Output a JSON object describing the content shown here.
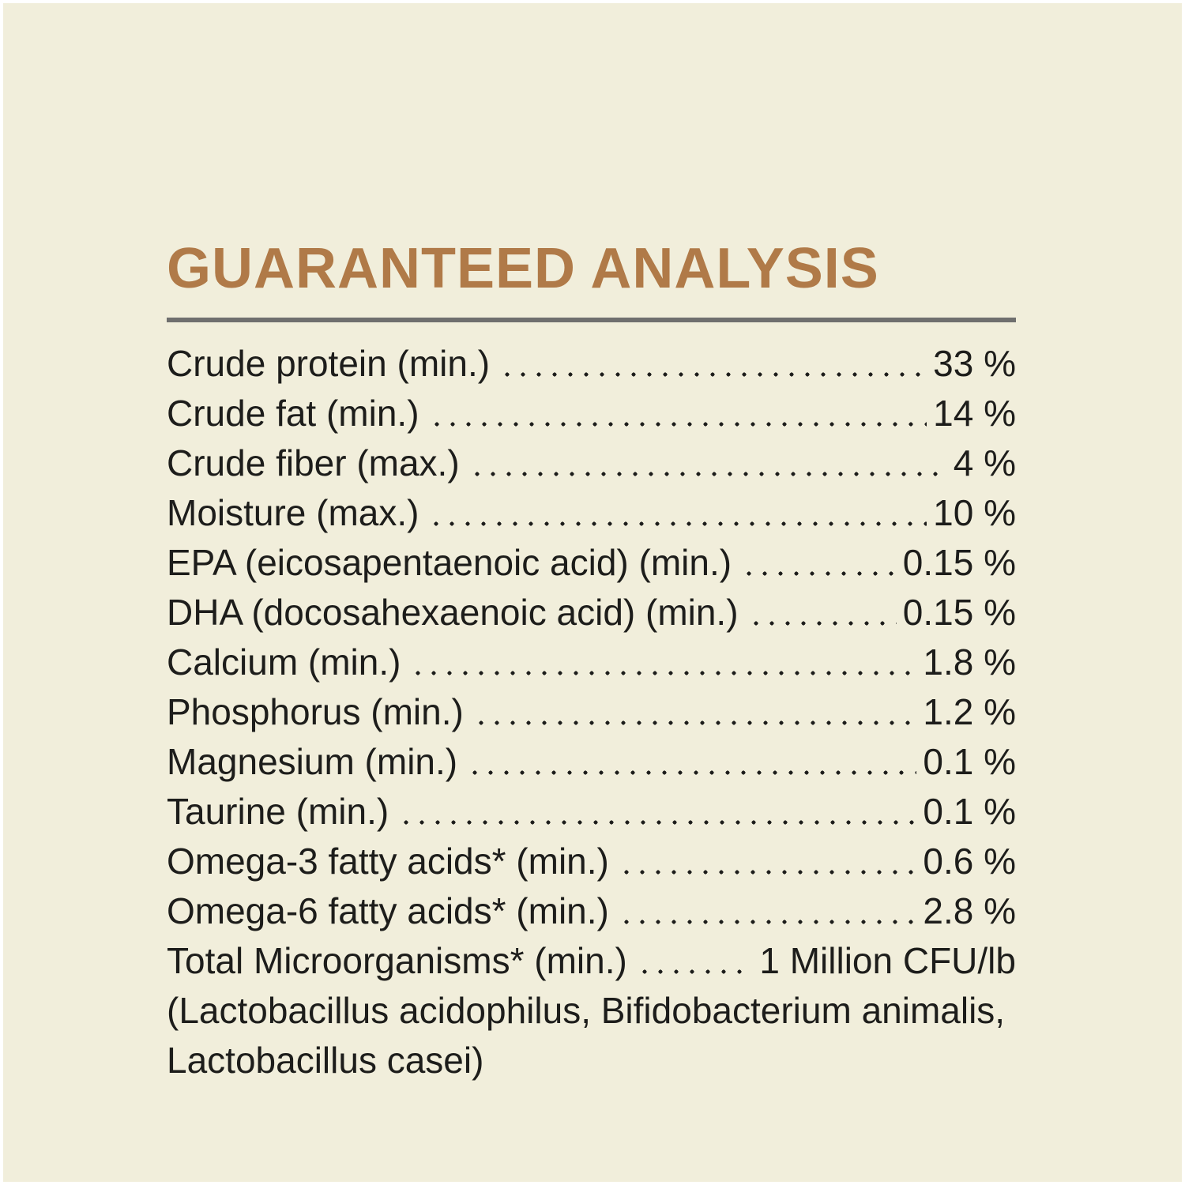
{
  "page": {
    "background_color": "#f1eedb",
    "frame_color": "#ffffff"
  },
  "heading": {
    "title": "GUARANTEED ANALYSIS",
    "color": "#b07a48",
    "rule_color": "#6f6f6e"
  },
  "analysis": {
    "text_color": "#1d1d1b",
    "rows": [
      {
        "label": "Crude protein (min.)",
        "value": "33 %"
      },
      {
        "label": "Crude fat (min.)",
        "value": "14 %"
      },
      {
        "label": "Crude fiber (max.)",
        "value": "4 %"
      },
      {
        "label": "Moisture (max.)",
        "value": "10 %"
      },
      {
        "label": "EPA (eicosapentaenoic acid) (min.)",
        "value": "0.15 %"
      },
      {
        "label": "DHA (docosahexaenoic acid) (min.)",
        "value": "0.15 %"
      },
      {
        "label": "Calcium (min.)",
        "value": "1.8 %"
      },
      {
        "label": "Phosphorus (min.)",
        "value": "1.2 %"
      },
      {
        "label": "Magnesium (min.)",
        "value": "0.1 %"
      },
      {
        "label": "Taurine (min.)",
        "value": "0.1 %"
      },
      {
        "label": "Omega-3 fatty acids* (min.)",
        "value": "0.6 %"
      },
      {
        "label": "Omega-6 fatty acids* (min.)",
        "value": "2.8 %"
      },
      {
        "label": "Total Microorganisms* (min.)",
        "value": "1 Million CFU/lb"
      }
    ],
    "note_lines": [
      "(Lactobacillus acidophilus, Bifidobacterium animalis,",
      "Lactobacillus casei)"
    ]
  }
}
